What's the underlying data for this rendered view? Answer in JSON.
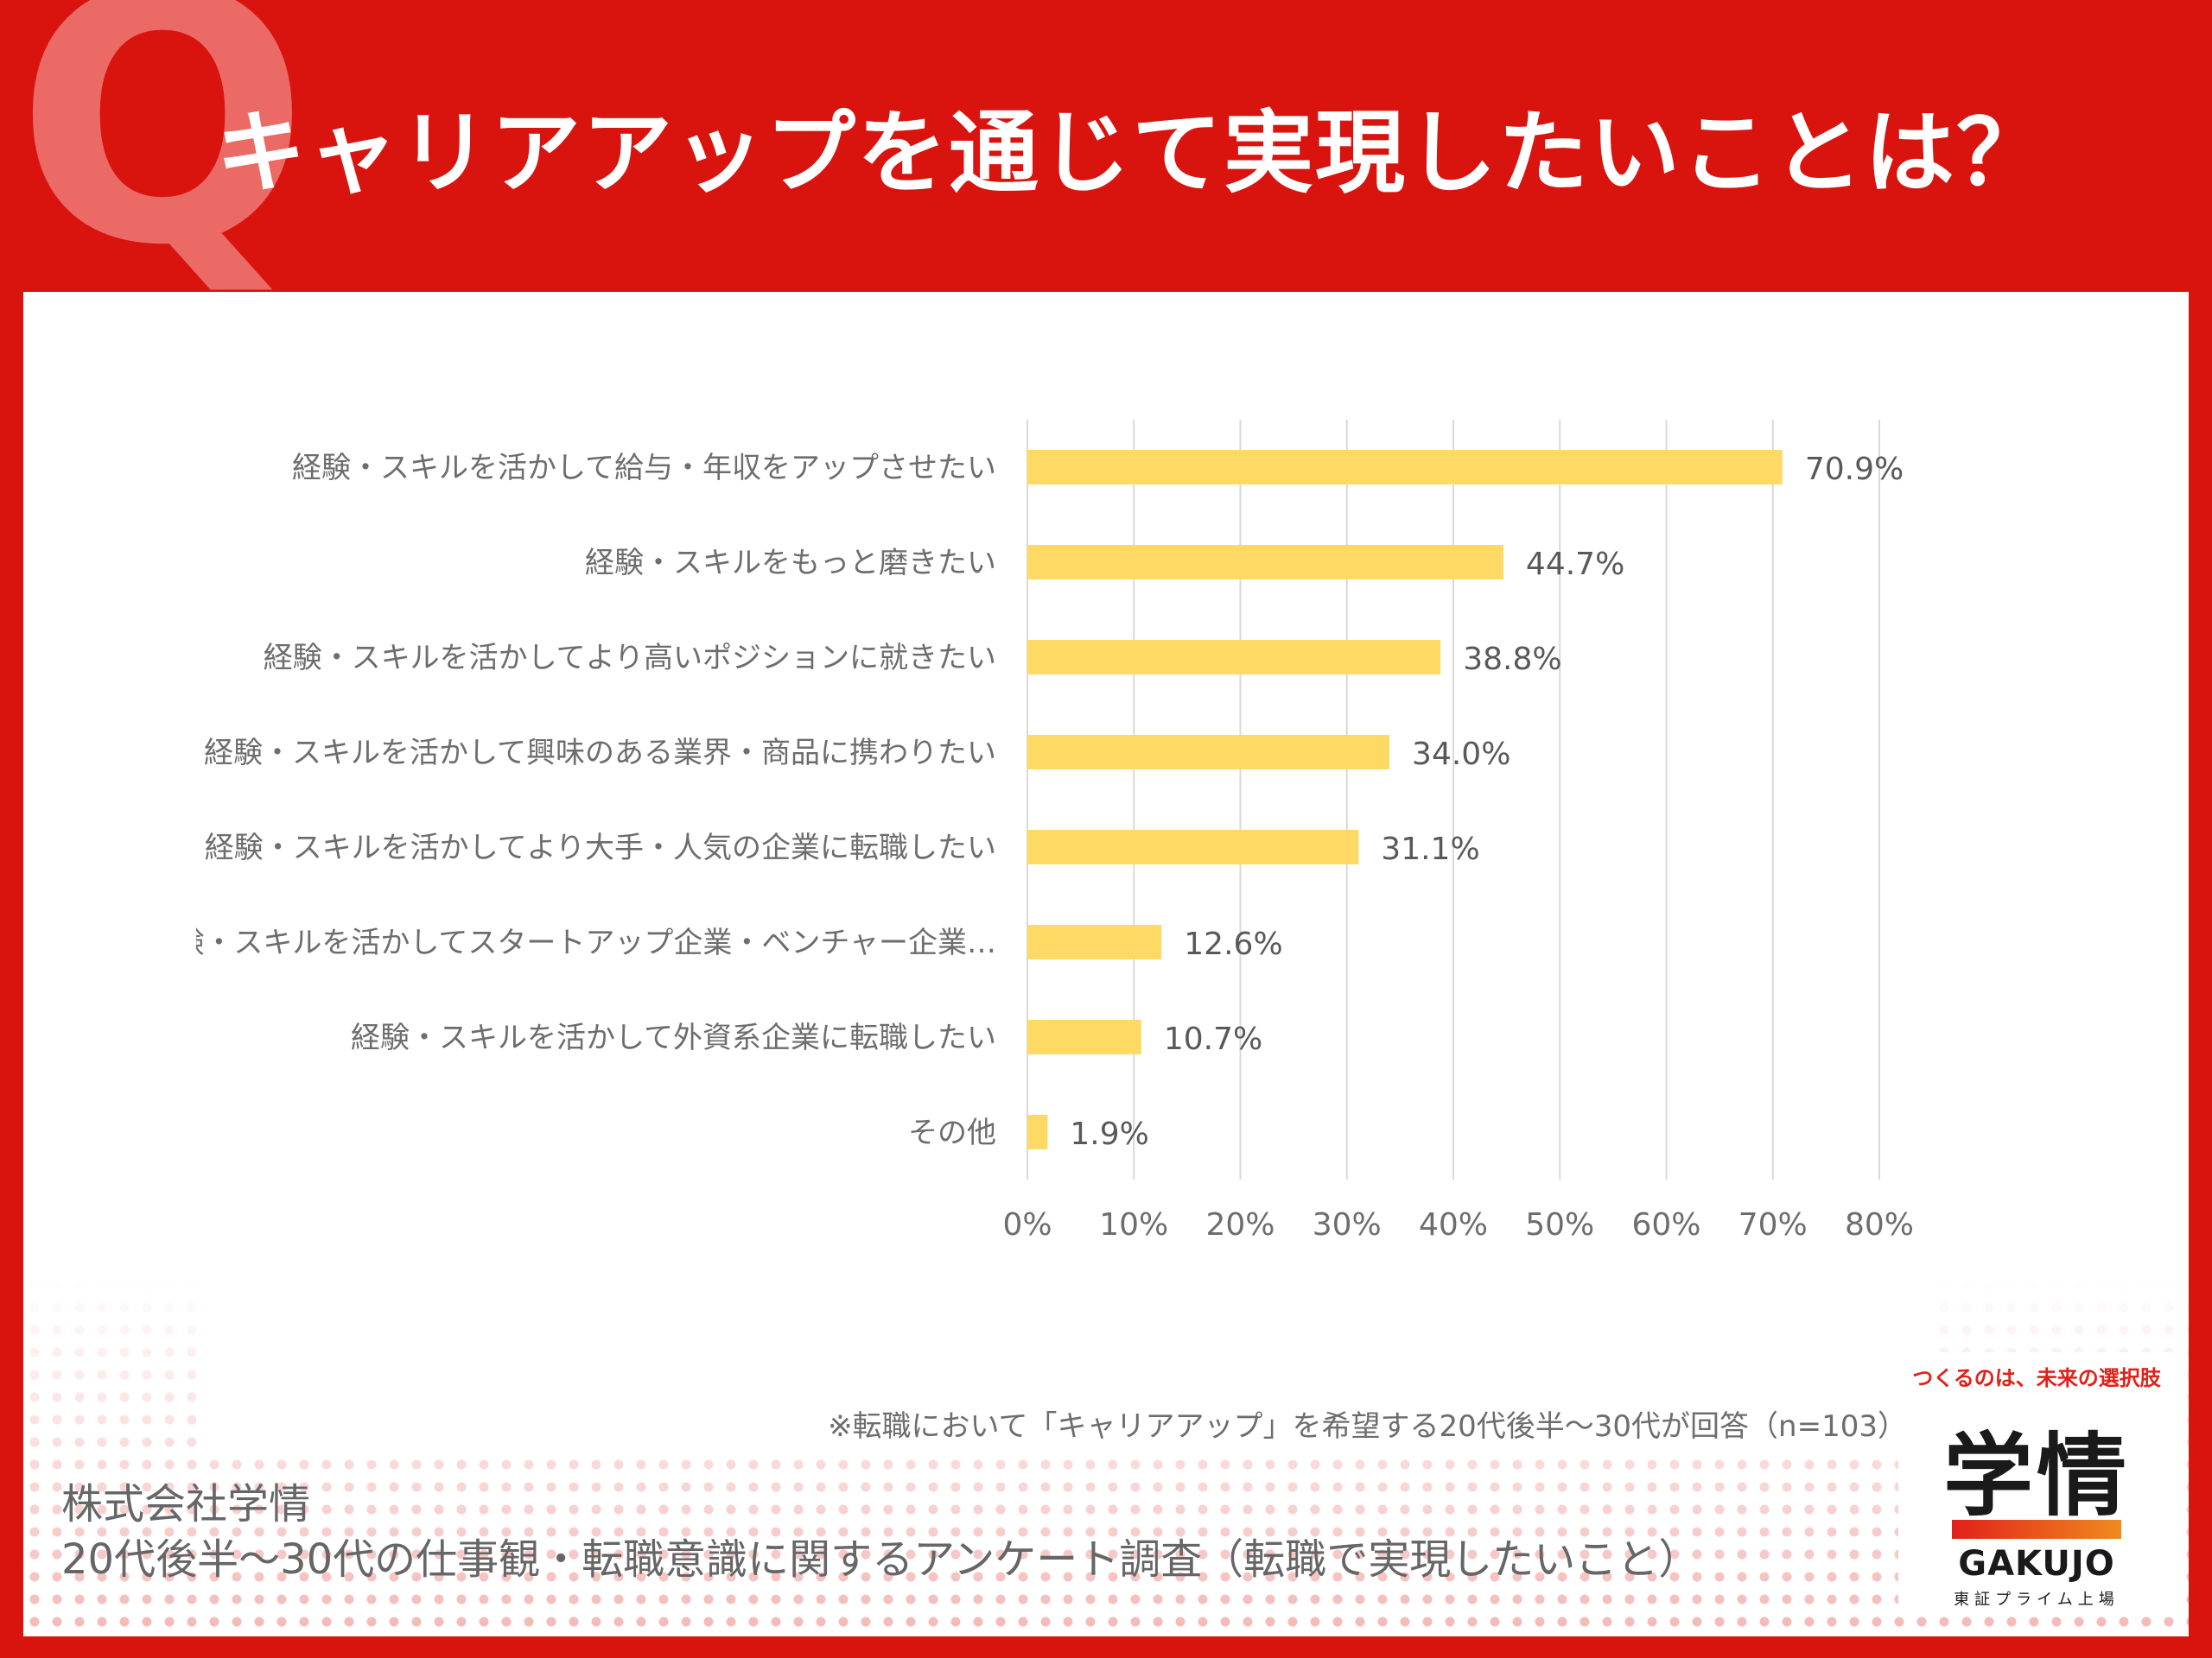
{
  "header": {
    "q_mark": "Q",
    "title": "キャリアアップを通じて実現したいことは？"
  },
  "chart_data": {
    "type": "bar",
    "orientation": "horizontal",
    "categories": [
      "経験・スキルを活かして給与・年収をアップさせたい",
      "経験・スキルをもっと磨きたい",
      "経験・スキルを活かしてより高いポジションに就きたい",
      "経験・スキルを活かして興味のある業界・商品に携わりたい",
      "経験・スキルを活かしてより大手・人気の企業に転職したい",
      "経験・スキルを活かしてスタートアップ企業・ベンチャー企業…",
      "経験・スキルを活かして外資系企業に転職したい",
      "その他"
    ],
    "values": [
      70.9,
      44.7,
      38.8,
      34.0,
      31.1,
      12.6,
      10.7,
      1.9
    ],
    "value_labels": [
      "70.9%",
      "44.7%",
      "38.8%",
      "34.0%",
      "31.1%",
      "12.6%",
      "10.7%",
      "1.9%"
    ],
    "xlim": [
      0,
      80
    ],
    "ticks": [
      0,
      10,
      20,
      30,
      40,
      50,
      60,
      70,
      80
    ],
    "tick_labels": [
      "0%",
      "10%",
      "20%",
      "30%",
      "40%",
      "50%",
      "60%",
      "70%",
      "80%"
    ],
    "grid": true,
    "legend": "none",
    "bar_color": "#ffd966",
    "grid_color": "#d9d9d9"
  },
  "note": "※転職において「キャリアアップ」を希望する20代後半～30代が回答（n=103）",
  "footer": {
    "line1": "株式会社学情",
    "line2": "20代後半～30代の仕事観・転職意識に関するアンケート調査（転職で実現したいこと）"
  },
  "logo": {
    "tagline": "つくるのは、未来の選択肢",
    "kanji": "学情",
    "roman": "GAKUJO",
    "sub": "東証プライム上場"
  },
  "colors": {
    "background": "#d9140f",
    "panel": "#ffffff",
    "accent": "#e2201a"
  }
}
